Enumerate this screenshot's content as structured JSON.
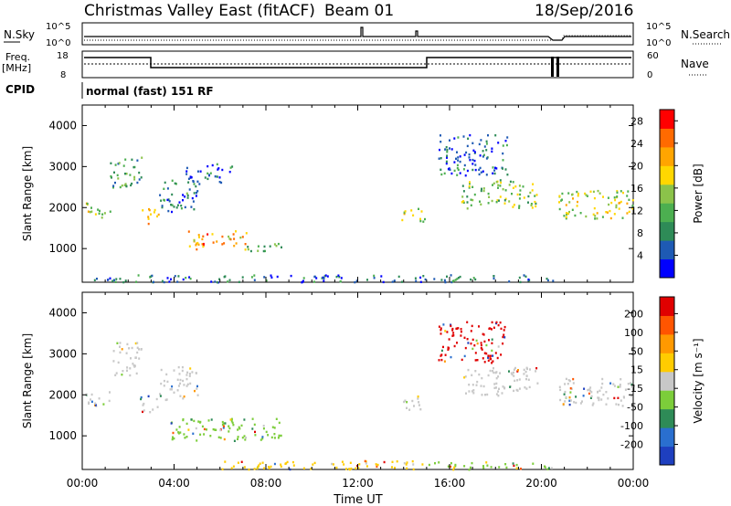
{
  "header": {
    "title": "Christmas Valley East (fitACF)",
    "beam": "Beam 01",
    "date": "18/Sep/2016"
  },
  "top_panels": {
    "nsky_label": "N.Sky",
    "nsearch_label": "N.Search",
    "freq_label_1": "Freq.",
    "freq_label_2": "[MHz]",
    "nave_label": "Nave",
    "cpid_label": "CPID",
    "cpid_value": "normal (fast) 151 RF",
    "noise_ticks_left": [
      "10^5",
      "10^0"
    ],
    "noise_ticks_right": [
      "10^5",
      "10^0"
    ],
    "freq_ticks": [
      "18",
      "8"
    ],
    "nave_ticks": [
      "60",
      "0"
    ]
  },
  "chart_data": [
    {
      "type": "heatmap",
      "name": "power",
      "ylabel": "Slant Range [km]",
      "ylim": [
        180,
        4500
      ],
      "yticks": [
        1000,
        2000,
        3000,
        4000
      ],
      "x": [
        "00:00",
        "04:00",
        "08:00",
        "12:00",
        "16:00",
        "20:00",
        "00:00"
      ],
      "colorbar": {
        "label": "Power [dB]",
        "ticks": [
          4,
          8,
          12,
          16,
          20,
          24,
          28
        ],
        "range": [
          0,
          30
        ],
        "colors": [
          "#0000ff",
          "#1e5ab4",
          "#2e8b57",
          "#4caf50",
          "#8bc34a",
          "#ffd700",
          "#ffa500",
          "#ff6a00",
          "#ff0000"
        ]
      },
      "blobs": [
        {
          "t0": 0.1,
          "t1": 1.2,
          "r0": 1750,
          "r1": 2150,
          "level": 16
        },
        {
          "t0": 1.2,
          "t1": 2.6,
          "r0": 2500,
          "r1": 3300,
          "level": 10
        },
        {
          "t0": 2.5,
          "t1": 3.3,
          "r0": 1600,
          "r1": 2000,
          "level": 18
        },
        {
          "t0": 3.3,
          "t1": 5.0,
          "r0": 1900,
          "r1": 2700,
          "level": 8
        },
        {
          "t0": 4.5,
          "t1": 6.5,
          "r0": 2600,
          "r1": 3100,
          "level": 6
        },
        {
          "t0": 4.6,
          "t1": 7.2,
          "r0": 1000,
          "r1": 1450,
          "level": 22
        },
        {
          "t0": 7.0,
          "t1": 8.8,
          "r0": 950,
          "r1": 1150,
          "level": 12
        },
        {
          "t0": 13.9,
          "t1": 14.9,
          "r0": 1650,
          "r1": 2000,
          "level": 16
        },
        {
          "t0": 16.5,
          "t1": 19.8,
          "r0": 2000,
          "r1": 2700,
          "level": 14
        },
        {
          "t0": 20.7,
          "t1": 24.0,
          "r0": 1750,
          "r1": 2450,
          "level": 16
        },
        {
          "t0": 15.5,
          "t1": 18.5,
          "r0": 2800,
          "r1": 3800,
          "level": 6
        },
        {
          "t0": 0.5,
          "t1": 20.5,
          "r0": 200,
          "r1": 380,
          "level": 6
        }
      ]
    },
    {
      "type": "heatmap",
      "name": "velocity",
      "ylabel": "Slant Range [km]",
      "ylim": [
        180,
        4500
      ],
      "yticks": [
        1000,
        2000,
        3000,
        4000
      ],
      "x": [
        "00:00",
        "04:00",
        "08:00",
        "12:00",
        "16:00",
        "20:00",
        "00:00"
      ],
      "xlabel": "Time UT",
      "colorbar": {
        "label": "Velocity [m s⁻¹]",
        "ticks": [
          "200",
          "100",
          "50",
          "15",
          "-15",
          "-50",
          "-100",
          "-200"
        ],
        "colors": [
          "#1e3fbf",
          "#2a6fcf",
          "#2e8b57",
          "#7ccd3a",
          "#c8c8c8",
          "#ffcc00",
          "#ff9900",
          "#ff5500",
          "#e00000"
        ]
      },
      "blobs": [
        {
          "t0": 0.1,
          "t1": 1.2,
          "r0": 1750,
          "r1": 2150,
          "color": "#c8c8c8"
        },
        {
          "t0": 1.2,
          "t1": 2.6,
          "r0": 2500,
          "r1": 3300,
          "color": "#c8c8c8"
        },
        {
          "t0": 2.5,
          "t1": 3.3,
          "r0": 1600,
          "r1": 2000,
          "color": "#c8c8c8"
        },
        {
          "t0": 3.3,
          "t1": 5.0,
          "r0": 1900,
          "r1": 2700,
          "color": "#c8c8c8"
        },
        {
          "t0": 3.8,
          "t1": 8.8,
          "r0": 900,
          "r1": 1450,
          "color": "#7ccd3a"
        },
        {
          "t0": 13.9,
          "t1": 14.9,
          "r0": 1650,
          "r1": 2000,
          "color": "#c8c8c8"
        },
        {
          "t0": 16.5,
          "t1": 19.8,
          "r0": 2000,
          "r1": 2700,
          "color": "#c8c8c8"
        },
        {
          "t0": 20.7,
          "t1": 24.0,
          "r0": 1750,
          "r1": 2450,
          "color": "#c8c8c8"
        },
        {
          "t0": 15.5,
          "t1": 18.5,
          "r0": 2800,
          "r1": 3800,
          "color": "#e00000"
        },
        {
          "t0": 6.0,
          "t1": 15.0,
          "r0": 200,
          "r1": 420,
          "color": "#ffcc00"
        },
        {
          "t0": 15.0,
          "t1": 20.5,
          "r0": 200,
          "r1": 380,
          "color": "#7ccd3a"
        }
      ]
    }
  ]
}
